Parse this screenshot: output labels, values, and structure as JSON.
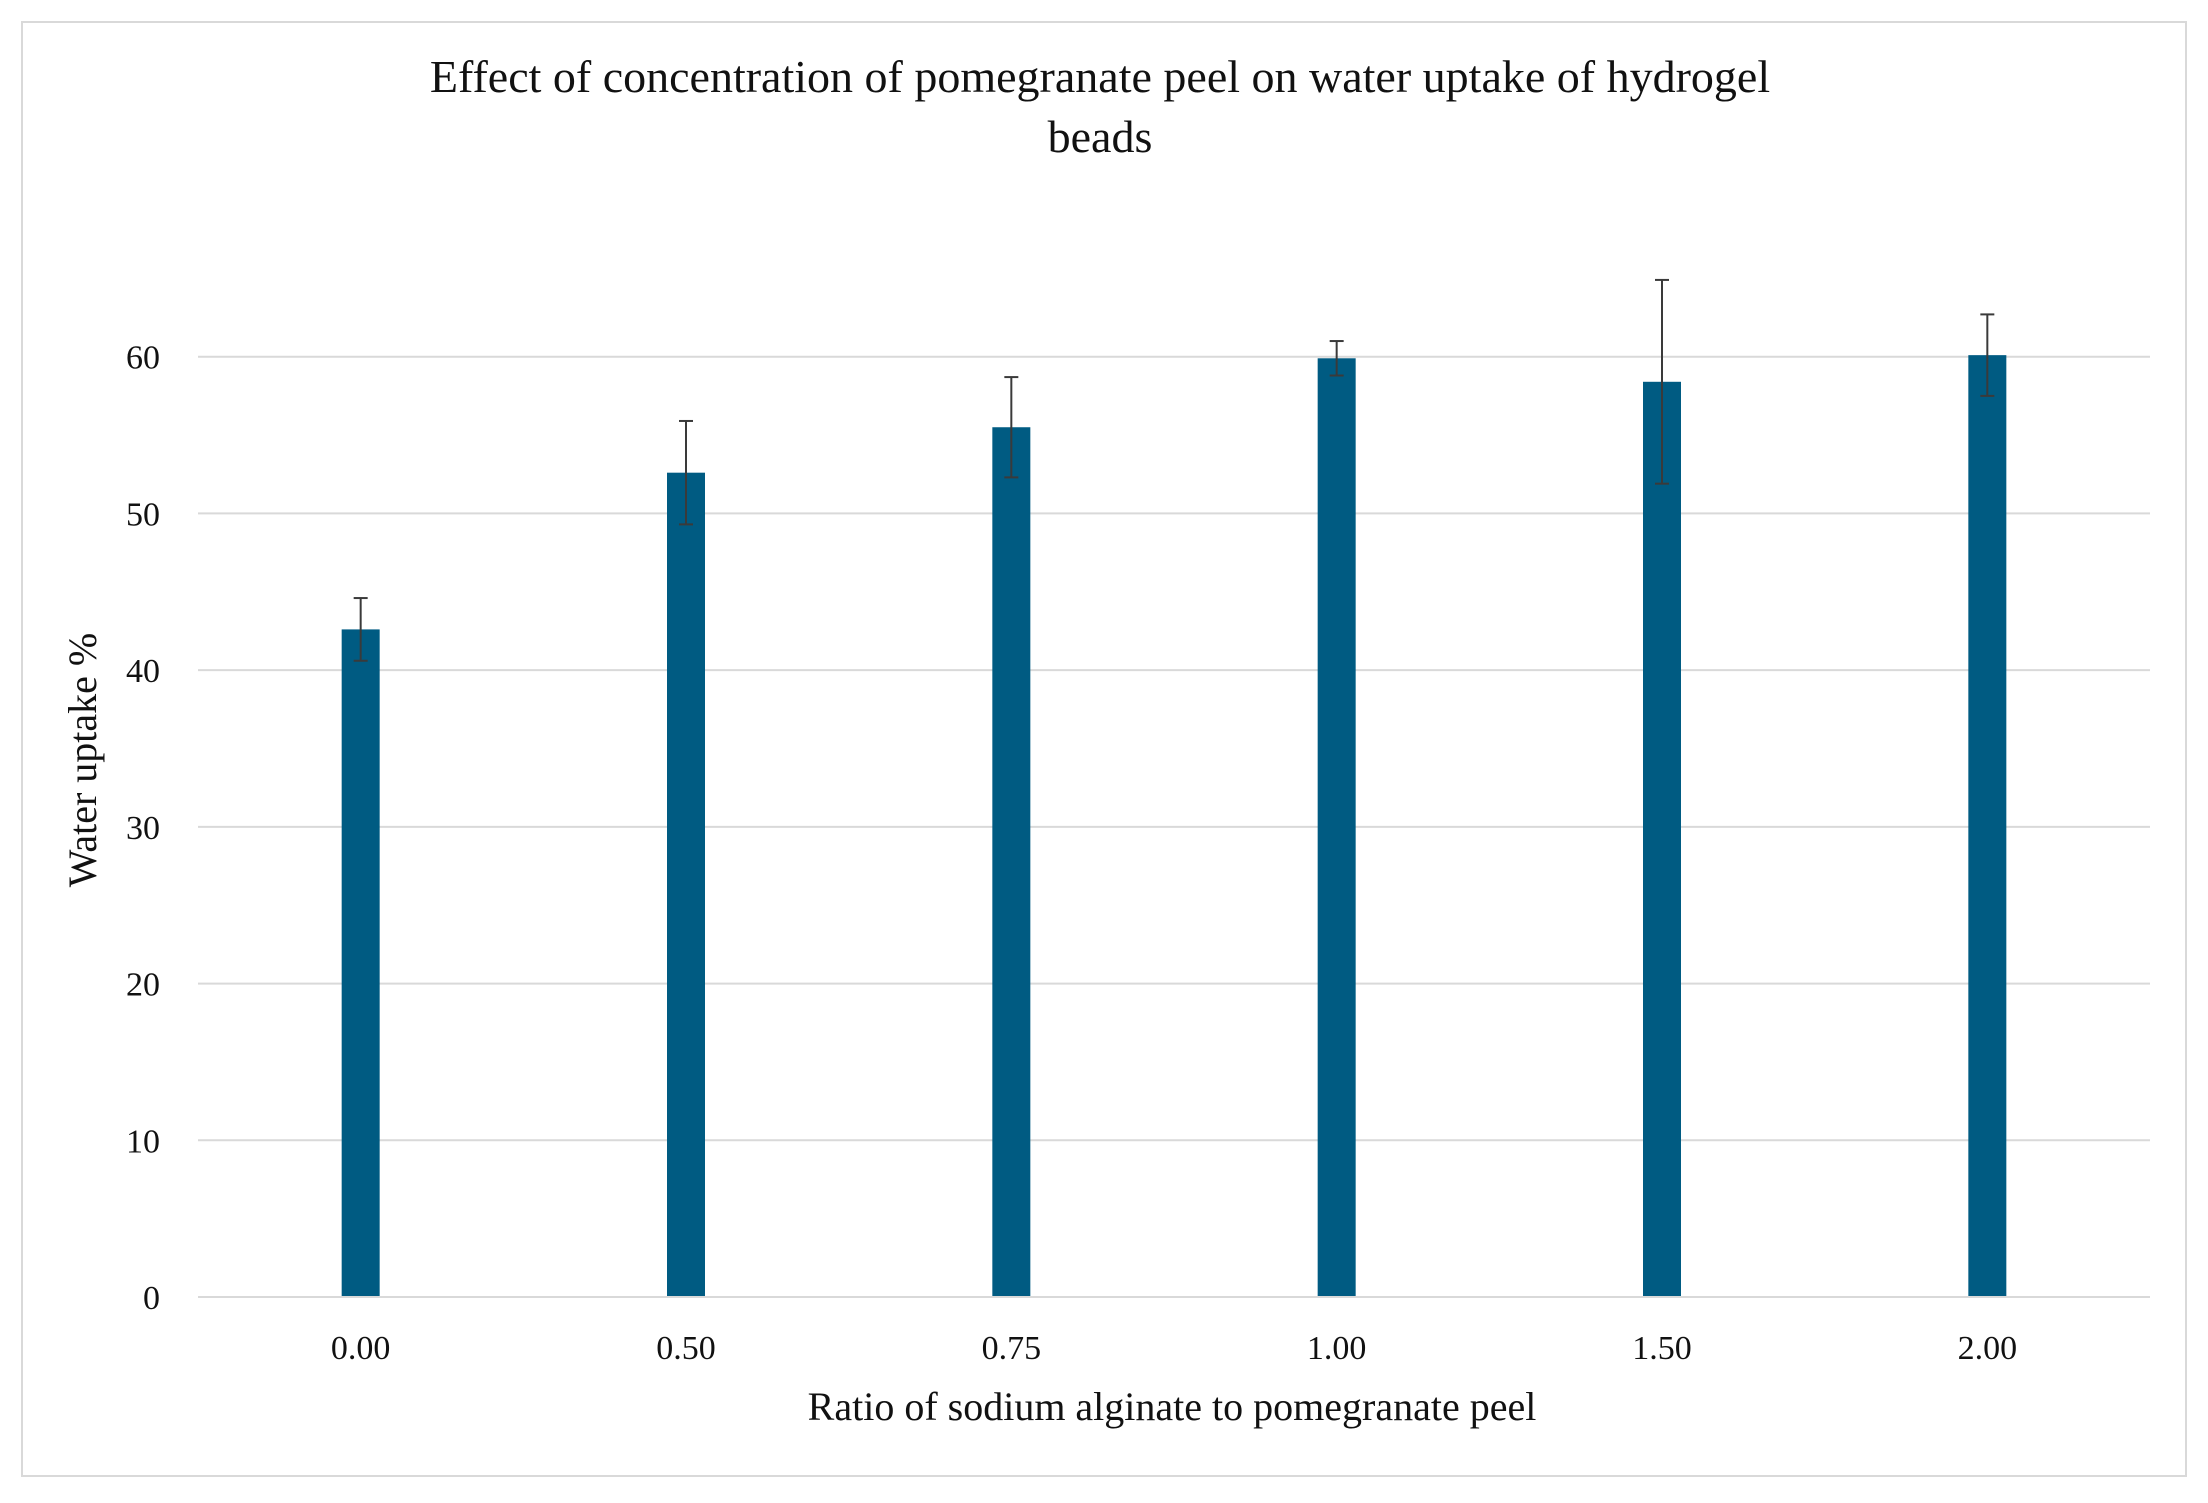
{
  "chart_data": {
    "type": "bar",
    "title_lines": [
      "Effect of concentration of pomegranate peel on water uptake of hydrogel",
      "beads"
    ],
    "xlabel": "Ratio of sodium alginate to pomegranate peel",
    "ylabel": "Water uptake %",
    "categories": [
      "0.00",
      "0.50",
      "0.75",
      "1.00",
      "1.50",
      "2.00"
    ],
    "values": [
      42.6,
      52.6,
      55.5,
      59.9,
      58.4,
      60.1
    ],
    "error_upper": [
      44.6,
      55.9,
      58.7,
      61.0,
      64.9,
      62.7
    ],
    "error_lower": [
      40.6,
      49.3,
      52.3,
      58.8,
      51.9,
      57.5
    ],
    "ylim": [
      0,
      70
    ],
    "yticks": [
      0,
      10,
      20,
      30,
      40,
      50,
      60
    ],
    "grid": true,
    "legend": "none",
    "colors": {
      "bar": "#005b82",
      "error_bar": "#3a3a3a",
      "grid": "#d9d9d9",
      "frame": "#d9d9d9"
    }
  }
}
